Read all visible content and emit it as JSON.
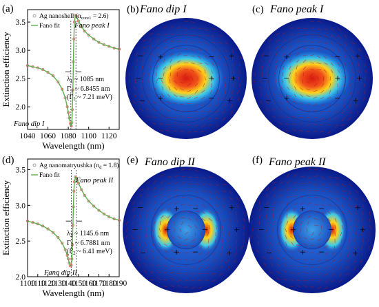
{
  "colors": {
    "data_marker": "#e07070",
    "fit_line": "#5cad4a",
    "field_core": "#d81b10",
    "field_warm": "#ffd21a",
    "field_mid": "#3fc9e8",
    "field_cool": "#1a4fc0",
    "field_edge": "#0a1a8a",
    "arrow": "#b01818"
  },
  "panels": {
    "b": {
      "letter": "(b)",
      "title": "Fano dip I"
    },
    "c": {
      "letter": "(c)",
      "title": "Fano peak I"
    },
    "e": {
      "letter": "(e)",
      "title": "Fano dip II"
    },
    "f": {
      "letter": "(f)",
      "title": "Fano peak II"
    }
  },
  "charge_signs": {
    "plus": "+",
    "minus": "−"
  },
  "chart_data": [
    {
      "panel": "(a)",
      "type": "line",
      "xlabel": "Wavelength (nm)",
      "ylabel": "Extinction efficiency",
      "xlim": [
        1040,
        1130
      ],
      "ylim": [
        1.6,
        3.72
      ],
      "xticks": [
        1040,
        1060,
        1080,
        1100,
        1120
      ],
      "yticks": [
        2.0,
        2.5,
        3.0,
        3.5
      ],
      "ytick_labels": [
        "2.0",
        "2.5",
        "3.0",
        "3.5"
      ],
      "legend": [
        {
          "marker": "○",
          "text": "Ag nanoshell (n",
          "sub": "core1",
          "tail": " = 2.6)"
        },
        {
          "marker": "line",
          "text": "Fano fit",
          "sub": "",
          "tail": ""
        }
      ],
      "annotations": {
        "peak": "Fano peak I",
        "dip": "Fano dip I",
        "lambda": {
          "sym": "λ",
          "sub": "1",
          "rest": " ~ 1085 nm"
        },
        "gamma": {
          "sym": "Γ",
          "sub": "1",
          "rest": " ~ 6.8455 nm"
        },
        "gamma_energy": {
          "sym": "(Γ",
          "sub": "1",
          "rest": " ~ 7.21 meV)"
        }
      },
      "resonance_nm": 1085,
      "dashed_lines_x": [
        1082.5,
        1087.5
      ],
      "series": [
        {
          "name": "Ag nanoshell (ncore1 = 2.6)",
          "style": "marker",
          "x": [
            1040,
            1045,
            1050,
            1055,
            1060,
            1065,
            1070,
            1074,
            1077,
            1079,
            1080,
            1081,
            1082,
            1083,
            1083.5,
            1084,
            1084.5,
            1085,
            1085.5,
            1086,
            1087,
            1088,
            1090,
            1093,
            1096,
            1100,
            1105,
            1110,
            1115,
            1120,
            1125,
            1130
          ],
          "y": [
            2.73,
            2.71,
            2.69,
            2.66,
            2.61,
            2.55,
            2.44,
            2.31,
            2.16,
            2.0,
            1.9,
            1.8,
            1.7,
            1.66,
            1.72,
            1.95,
            2.3,
            2.8,
            3.2,
            3.5,
            3.62,
            3.6,
            3.52,
            3.42,
            3.34,
            3.27,
            3.2,
            3.14,
            3.1,
            3.07,
            3.04,
            3.02
          ]
        },
        {
          "name": "Fano fit",
          "style": "line",
          "x": [
            1040,
            1045,
            1050,
            1055,
            1060,
            1065,
            1070,
            1074,
            1077,
            1079,
            1080,
            1081,
            1082,
            1083,
            1083.5,
            1084,
            1084.5,
            1085,
            1085.5,
            1086,
            1087,
            1088,
            1090,
            1093,
            1096,
            1100,
            1105,
            1110,
            1115,
            1120,
            1125,
            1130
          ],
          "y": [
            2.73,
            2.71,
            2.69,
            2.66,
            2.61,
            2.55,
            2.44,
            2.31,
            2.16,
            2.0,
            1.9,
            1.8,
            1.7,
            1.66,
            1.72,
            1.95,
            2.3,
            2.8,
            3.2,
            3.5,
            3.62,
            3.6,
            3.52,
            3.42,
            3.34,
            3.27,
            3.2,
            3.14,
            3.1,
            3.07,
            3.04,
            3.02
          ]
        }
      ]
    },
    {
      "panel": "(d)",
      "type": "line",
      "xlabel": "Wavelength (nm)",
      "ylabel": "Extinction efficiency",
      "xlim": [
        1100,
        1190
      ],
      "ylim": [
        2.0,
        3.65
      ],
      "xticks": [
        1100,
        1110,
        1120,
        1130,
        1140,
        1150,
        1160,
        1170,
        1180,
        1190
      ],
      "yticks": [
        2.0,
        2.5,
        3.0,
        3.5
      ],
      "ytick_labels": [
        "2.0",
        "2.5",
        "3.0",
        "3.5"
      ],
      "legend": [
        {
          "marker": "○",
          "text": "Ag nanomatryushka (n",
          "sub": "d",
          "tail": " = 1.8)"
        },
        {
          "marker": "line",
          "text": "Fano fit",
          "sub": "",
          "tail": ""
        }
      ],
      "annotations": {
        "peak": "Fano peak II",
        "dip": "Fano dip II",
        "lambda": {
          "sym": "λ",
          "sub": "2",
          "rest": " ~ 1145.6 nm"
        },
        "gamma": {
          "sym": "Γ",
          "sub": "2",
          "rest": " ~ 6.7881 nm"
        },
        "gamma_energy": {
          "sym": "(Γ",
          "sub": "2",
          "rest": " ~ 6.41 meV)"
        }
      },
      "resonance_nm": 1145.6,
      "dashed_lines_x": [
        1143,
        1148
      ],
      "series": [
        {
          "name": "Ag nanomatryushka (nd = 1.8)",
          "style": "marker",
          "x": [
            1100,
            1105,
            1110,
            1115,
            1120,
            1125,
            1130,
            1134,
            1137,
            1139,
            1140,
            1141,
            1142,
            1143,
            1143.5,
            1144,
            1144.5,
            1145,
            1145.5,
            1146,
            1147,
            1148,
            1150,
            1153,
            1156,
            1160,
            1165,
            1170,
            1175,
            1180,
            1185,
            1190
          ],
          "y": [
            2.78,
            2.76,
            2.74,
            2.71,
            2.67,
            2.62,
            2.55,
            2.47,
            2.38,
            2.3,
            2.25,
            2.19,
            2.15,
            2.16,
            2.25,
            2.45,
            2.72,
            2.98,
            3.2,
            3.33,
            3.4,
            3.38,
            3.31,
            3.22,
            3.14,
            3.06,
            2.99,
            2.93,
            2.88,
            2.84,
            2.81,
            2.79
          ]
        },
        {
          "name": "Fano fit",
          "style": "line",
          "x": [
            1100,
            1105,
            1110,
            1115,
            1120,
            1125,
            1130,
            1134,
            1137,
            1139,
            1140,
            1141,
            1142,
            1143,
            1143.5,
            1144,
            1144.5,
            1145,
            1145.5,
            1146,
            1147,
            1148,
            1150,
            1153,
            1156,
            1160,
            1165,
            1170,
            1175,
            1180,
            1185,
            1190
          ],
          "y": [
            2.78,
            2.76,
            2.74,
            2.71,
            2.67,
            2.62,
            2.55,
            2.47,
            2.38,
            2.3,
            2.25,
            2.19,
            2.15,
            2.16,
            2.25,
            2.45,
            2.72,
            2.98,
            3.2,
            3.33,
            3.4,
            3.38,
            3.31,
            3.22,
            3.14,
            3.06,
            2.99,
            2.93,
            2.88,
            2.84,
            2.81,
            2.79
          ]
        }
      ]
    }
  ]
}
